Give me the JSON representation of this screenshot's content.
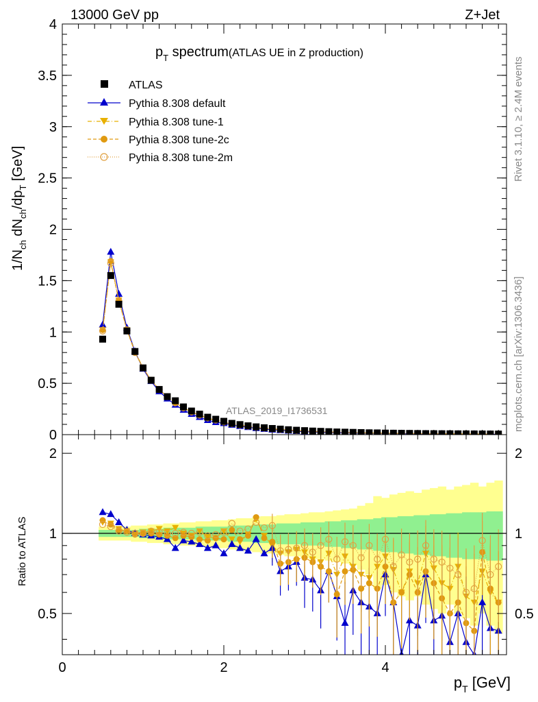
{
  "header": {
    "energy_label": "13000 GeV pp",
    "process_label": "Z+Jet",
    "title_main": "p",
    "title_sub": "T",
    "title_word": " spectrum",
    "title_note": "(ATLAS UE in Z production)",
    "analysis_id": "ATLAS_2019_I1736531"
  },
  "side_text": {
    "rivet": "Rivet 3.1.10, ≥ 2.4M events",
    "mcplots": "mcplots.cern.ch [arXiv:1306.3436]"
  },
  "axes": {
    "ylabel_main": "1/N_ch dN_ch/dp_T [GeV]",
    "ylabel_ratio": "Ratio to ATLAS",
    "xlabel": "p_T [GeV]",
    "main_yticks": [
      "0",
      "0.5",
      "1",
      "1.5",
      "2",
      "2.5",
      "3",
      "3.5",
      "4"
    ],
    "ratio_yticks": [
      "0.5",
      "1",
      "2"
    ],
    "xticks": [
      "0",
      "2",
      "4"
    ]
  },
  "legend": {
    "atlas": "ATLAS",
    "default": "Pythia 8.308 default",
    "tune1": "Pythia 8.308 tune-1",
    "tune2c": "Pythia 8.308 tune-2c",
    "tune2m": "Pythia 8.308 tune-2m"
  },
  "colors": {
    "atlas": "#000000",
    "default": "#0000cc",
    "tune1": "#e8b000",
    "tune2c": "#e09a10",
    "tune2m": "#e0a040",
    "band_stat": "#90f090",
    "band_syst": "#ffff90"
  },
  "chart_data": [
    {
      "type": "line",
      "panel": "main",
      "title": "p_T spectrum (ATLAS UE in Z production)",
      "xlabel": "p_T [GeV]",
      "ylabel": "1/N_ch dN_ch/dp_T [GeV]",
      "xlim": [
        0,
        5.5
      ],
      "ylim": [
        0,
        4
      ],
      "x": [
        0.5,
        0.6,
        0.7,
        0.8,
        0.9,
        1.0,
        1.1,
        1.2,
        1.3,
        1.4,
        1.5,
        1.6,
        1.7,
        1.8,
        1.9,
        2.0,
        2.1,
        2.2,
        2.3,
        2.4,
        2.5,
        2.6,
        2.7,
        2.8,
        2.9,
        3.0,
        3.1,
        3.2,
        3.3,
        3.4,
        3.5,
        3.6,
        3.7,
        3.8,
        3.9,
        4.0,
        4.1,
        4.2,
        4.3,
        4.4,
        4.5,
        4.6,
        4.7,
        4.8,
        4.9,
        5.0,
        5.1,
        5.2,
        5.3,
        5.4
      ],
      "series": [
        {
          "name": "ATLAS",
          "values": [
            0.93,
            1.55,
            1.27,
            1.01,
            0.81,
            0.65,
            0.53,
            0.44,
            0.37,
            0.33,
            0.27,
            0.23,
            0.2,
            0.17,
            0.15,
            0.13,
            0.11,
            0.098,
            0.086,
            0.076,
            0.067,
            0.06,
            0.054,
            0.048,
            0.043,
            0.039,
            0.035,
            0.032,
            0.029,
            0.026,
            0.024,
            0.022,
            0.02,
            0.018,
            0.017,
            0.015,
            0.014,
            0.013,
            0.012,
            0.011,
            0.01,
            0.0095,
            0.009,
            0.0085,
            0.008,
            0.0075,
            0.007,
            0.0066,
            0.0062,
            0.0058
          ]
        },
        {
          "name": "Pythia 8.308 default",
          "values": [
            1.07,
            1.78,
            1.37,
            1.04,
            0.81,
            0.64,
            0.52,
            0.42,
            0.35,
            0.29,
            0.24,
            0.2,
            0.17,
            0.14,
            0.12,
            0.11,
            0.094,
            0.082,
            0.072,
            0.062,
            0.054,
            0.047,
            0.042,
            0.037,
            0.033,
            0.029,
            0.026,
            0.023,
            0.021,
            0.019,
            0.017,
            0.015,
            0.014,
            0.013,
            0.012,
            0.011,
            0.01,
            0.009,
            0.0085,
            0.008,
            0.0075,
            0.007,
            0.0065,
            0.006,
            0.0055,
            0.005,
            0.0047,
            0.0044,
            0.0041,
            0.0038
          ]
        },
        {
          "name": "Pythia 8.308 tune-1",
          "values": [
            1.02,
            1.68,
            1.31,
            1.02,
            0.81,
            0.65,
            0.53,
            0.44,
            0.37,
            0.31,
            0.26,
            0.22,
            0.19,
            0.16,
            0.14,
            0.12,
            0.105,
            0.092,
            0.081,
            0.071,
            0.063,
            0.056,
            0.05,
            0.045,
            0.04,
            0.036,
            0.032,
            0.029,
            0.026,
            0.024,
            0.022,
            0.02,
            0.018,
            0.016,
            0.015,
            0.014,
            0.013,
            0.012,
            0.011,
            0.01,
            0.0095,
            0.009,
            0.0085,
            0.008,
            0.0075,
            0.007,
            0.0065,
            0.006,
            0.0057,
            0.0053
          ]
        },
        {
          "name": "Pythia 8.308 tune-2c",
          "values": [
            1.02,
            1.69,
            1.31,
            1.02,
            0.8,
            0.65,
            0.53,
            0.44,
            0.37,
            0.31,
            0.26,
            0.22,
            0.19,
            0.16,
            0.14,
            0.12,
            0.104,
            0.091,
            0.08,
            0.07,
            0.062,
            0.055,
            0.049,
            0.044,
            0.039,
            0.035,
            0.031,
            0.028,
            0.025,
            0.023,
            0.021,
            0.019,
            0.017,
            0.016,
            0.014,
            0.013,
            0.012,
            0.011,
            0.0105,
            0.0098,
            0.0092,
            0.0086,
            0.008,
            0.0075,
            0.007,
            0.0066,
            0.0062,
            0.0058,
            0.0054,
            0.005
          ]
        },
        {
          "name": "Pythia 8.308 tune-2m",
          "values": [
            1.01,
            1.67,
            1.3,
            1.02,
            0.8,
            0.65,
            0.53,
            0.44,
            0.37,
            0.31,
            0.26,
            0.22,
            0.19,
            0.165,
            0.143,
            0.124,
            0.108,
            0.095,
            0.083,
            0.073,
            0.065,
            0.058,
            0.051,
            0.046,
            0.041,
            0.037,
            0.033,
            0.03,
            0.027,
            0.024,
            0.022,
            0.02,
            0.018,
            0.017,
            0.015,
            0.014,
            0.013,
            0.012,
            0.011,
            0.0103,
            0.0096,
            0.009,
            0.0084,
            0.0079,
            0.0074,
            0.0069,
            0.0065,
            0.0061,
            0.0057,
            0.0053
          ]
        }
      ]
    },
    {
      "type": "line",
      "panel": "ratio",
      "ylabel": "Ratio to ATLAS",
      "xlabel": "p_T [GeV]",
      "xlim": [
        0,
        5.5
      ],
      "ylim": [
        0.35,
        2.35
      ],
      "y_scale": "log",
      "x": [
        0.5,
        0.6,
        0.7,
        0.8,
        0.9,
        1.0,
        1.1,
        1.2,
        1.3,
        1.4,
        1.5,
        1.6,
        1.7,
        1.8,
        1.9,
        2.0,
        2.1,
        2.2,
        2.3,
        2.4,
        2.5,
        2.6,
        2.7,
        2.8,
        2.9,
        3.0,
        3.1,
        3.2,
        3.3,
        3.4,
        3.5,
        3.6,
        3.7,
        3.8,
        3.9,
        4.0,
        4.1,
        4.2,
        4.3,
        4.4,
        4.5,
        4.6,
        4.7,
        4.8,
        4.9,
        5.0,
        5.1,
        5.2,
        5.3,
        5.4
      ],
      "bands": {
        "stat_half_width": [
          0.03,
          0.03,
          0.03,
          0.03,
          0.03,
          0.04,
          0.04,
          0.04,
          0.05,
          0.05,
          0.05,
          0.05,
          0.06,
          0.06,
          0.06,
          0.06,
          0.07,
          0.07,
          0.07,
          0.08,
          0.08,
          0.08,
          0.09,
          0.09,
          0.09,
          0.1,
          0.1,
          0.1,
          0.11,
          0.11,
          0.12,
          0.12,
          0.13,
          0.13,
          0.14,
          0.15,
          0.15,
          0.16,
          0.16,
          0.17,
          0.17,
          0.18,
          0.18,
          0.19,
          0.19,
          0.2,
          0.2,
          0.2,
          0.21,
          0.21
        ],
        "syst_half_width": [
          0.06,
          0.06,
          0.06,
          0.06,
          0.07,
          0.07,
          0.08,
          0.08,
          0.09,
          0.09,
          0.1,
          0.1,
          0.11,
          0.11,
          0.12,
          0.12,
          0.13,
          0.14,
          0.14,
          0.15,
          0.16,
          0.16,
          0.17,
          0.18,
          0.18,
          0.19,
          0.2,
          0.2,
          0.21,
          0.22,
          0.23,
          0.24,
          0.27,
          0.3,
          0.38,
          0.36,
          0.4,
          0.42,
          0.44,
          0.42,
          0.46,
          0.48,
          0.5,
          0.46,
          0.5,
          0.52,
          0.55,
          0.5,
          0.55,
          0.58
        ]
      },
      "series": [
        {
          "name": "Pythia 8.308 default",
          "values": [
            1.2,
            1.18,
            1.1,
            1.03,
            1.0,
            0.99,
            0.98,
            0.97,
            0.95,
            0.88,
            0.94,
            0.93,
            0.91,
            0.88,
            0.9,
            0.84,
            0.91,
            0.88,
            0.86,
            0.95,
            0.84,
            0.88,
            0.72,
            0.75,
            0.78,
            0.68,
            0.67,
            0.61,
            0.72,
            0.58,
            0.46,
            0.61,
            0.55,
            0.53,
            0.5,
            0.7,
            0.55,
            0.33,
            0.47,
            0.45,
            0.7,
            0.47,
            0.49,
            0.39,
            0.5,
            0.39,
            0.31,
            0.55,
            0.44,
            0.43
          ]
        },
        {
          "name": "Pythia 8.308 tune-1",
          "values": [
            1.1,
            1.09,
            1.04,
            1.02,
            1.0,
            1.01,
            1.02,
            1.04,
            1.02,
            1.05,
            1.0,
            0.98,
            1.02,
            0.97,
            0.96,
            1.02,
            0.95,
            0.93,
            0.99,
            1.13,
            0.98,
            0.9,
            0.84,
            0.85,
            0.87,
            0.85,
            0.8,
            0.78,
            0.84,
            0.7,
            0.82,
            0.75,
            0.7,
            0.68,
            0.75,
            0.82,
            0.73,
            0.6,
            0.72,
            0.65,
            0.84,
            0.74,
            0.65,
            0.62,
            0.75,
            0.58,
            0.55,
            0.72,
            0.6,
            0.55
          ]
        },
        {
          "name": "Pythia 8.308 tune-2c",
          "values": [
            1.12,
            1.08,
            1.03,
            1.02,
            0.99,
            1.0,
            1.0,
            0.99,
            0.98,
            0.96,
            0.98,
            0.97,
            0.95,
            0.94,
            0.96,
            0.95,
            1.03,
            0.95,
            0.98,
            1.15,
            0.96,
            0.93,
            0.77,
            0.78,
            0.8,
            0.81,
            0.78,
            0.75,
            0.72,
            0.59,
            0.72,
            0.73,
            0.62,
            0.65,
            0.62,
            0.75,
            0.55,
            0.6,
            0.7,
            0.6,
            0.72,
            0.65,
            0.57,
            0.5,
            0.55,
            0.46,
            0.43,
            0.85,
            0.62,
            0.55
          ]
        },
        {
          "name": "Pythia 8.308 tune-2m",
          "values": [
            1.08,
            1.06,
            1.02,
            1.01,
            1.0,
            1.0,
            1.02,
            1.01,
            1.0,
            1.0,
            1.01,
            1.0,
            1.01,
            0.98,
            0.99,
            1.01,
            1.09,
            1.02,
            1.04,
            1.1,
            1.05,
            1.07,
            0.86,
            0.87,
            0.88,
            0.9,
            0.85,
            0.9,
            0.95,
            0.8,
            0.93,
            0.9,
            0.81,
            0.9,
            0.8,
            0.95,
            0.75,
            0.83,
            0.78,
            0.8,
            0.9,
            0.8,
            0.78,
            0.74,
            0.7,
            0.6,
            0.62,
            0.94,
            0.7,
            0.75
          ]
        }
      ]
    }
  ]
}
